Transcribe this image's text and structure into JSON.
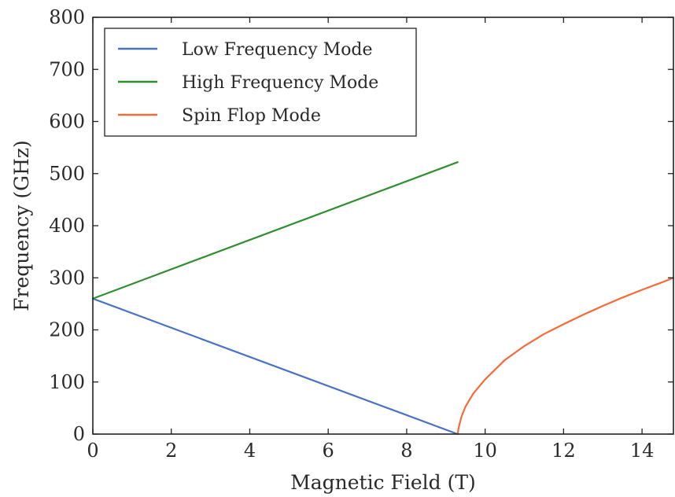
{
  "chart_data": {
    "type": "line",
    "title": "",
    "xlabel": "Magnetic Field (T)",
    "ylabel": "Frequency (GHz)",
    "xlim": [
      0,
      14.8
    ],
    "ylim": [
      0,
      800
    ],
    "xticks": [
      0,
      2,
      4,
      6,
      8,
      10,
      12,
      14
    ],
    "yticks": [
      0,
      100,
      200,
      300,
      400,
      500,
      600,
      700,
      800
    ],
    "grid": false,
    "legend_position": "top-left",
    "series": [
      {
        "name": "Low Frequency Mode",
        "color": "#4a72c4",
        "x": [
          0,
          9.3
        ],
        "y": [
          260,
          0
        ]
      },
      {
        "name": "High Frequency Mode",
        "color": "#2f8f2f",
        "x": [
          0,
          9.3
        ],
        "y": [
          260,
          522
        ]
      },
      {
        "name": "Spin Flop Mode",
        "color": "#f26b3a",
        "x": [
          9.3,
          9.32,
          9.35,
          9.4,
          9.5,
          9.7,
          10.0,
          10.5,
          11.0,
          11.5,
          12.0,
          12.5,
          13.0,
          13.5,
          14.0,
          14.5,
          14.8
        ],
        "y": [
          0,
          10,
          20,
          34,
          53,
          78,
          105,
          142,
          169,
          192,
          211,
          229,
          246,
          262,
          277,
          291,
          300
        ]
      }
    ]
  }
}
